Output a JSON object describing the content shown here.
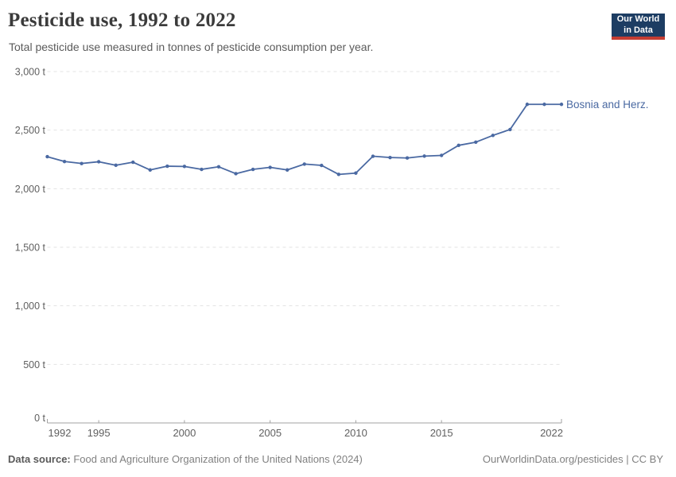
{
  "header": {
    "title": "Pesticide use, 1992 to 2022",
    "subtitle": "Total pesticide use measured in tonnes of pesticide consumption per year.",
    "logo": {
      "line1": "Our World",
      "line2": "in Data"
    }
  },
  "chart_data": {
    "type": "line",
    "title": "Pesticide use, 1992 to 2022",
    "xlabel": "",
    "ylabel": "",
    "unit": "t",
    "xlim": [
      1992,
      2022
    ],
    "ylim": [
      0,
      3000
    ],
    "grid": "horizontal-dashed",
    "legend_position": "end-of-line-label",
    "x": [
      1992,
      1993,
      1994,
      1995,
      1996,
      1997,
      1998,
      1999,
      2000,
      2001,
      2002,
      2003,
      2004,
      2005,
      2006,
      2007,
      2008,
      2009,
      2010,
      2011,
      2012,
      2013,
      2014,
      2015,
      2016,
      2017,
      2018,
      2019,
      2020,
      2021,
      2022
    ],
    "series": [
      {
        "name": "Bosnia and Herz.",
        "values": [
          2273,
          2232,
          2215,
          2230,
          2200,
          2226,
          2160,
          2192,
          2190,
          2165,
          2187,
          2128,
          2165,
          2182,
          2160,
          2210,
          2199,
          2122,
          2133,
          2277,
          2266,
          2262,
          2278,
          2284,
          2370,
          2397,
          2455,
          2505,
          2720,
          2720,
          2720
        ]
      }
    ],
    "x_ticks": [
      {
        "value": 1992,
        "label": "1992"
      },
      {
        "value": 1995,
        "label": "1995"
      },
      {
        "value": 2000,
        "label": "2000"
      },
      {
        "value": 2005,
        "label": "2005"
      },
      {
        "value": 2010,
        "label": "2010"
      },
      {
        "value": 2015,
        "label": "2015"
      },
      {
        "value": 2022,
        "label": "2022"
      }
    ],
    "y_ticks": [
      {
        "value": 0,
        "label": "0 t"
      },
      {
        "value": 500,
        "label": "500 t"
      },
      {
        "value": 1000,
        "label": "1,000 t"
      },
      {
        "value": 1500,
        "label": "1,500 t"
      },
      {
        "value": 2000,
        "label": "2,000 t"
      },
      {
        "value": 2500,
        "label": "2,500 t"
      },
      {
        "value": 3000,
        "label": "3,000 t"
      }
    ]
  },
  "colors": {
    "line": "#4a69a2",
    "series_label": "#4a69a2",
    "grid": "#e3e3e3",
    "axis": "#a1a1a1",
    "tick_text": "#606060",
    "title_text": "#3b3b3b",
    "subtitle_text": "#5b5b5b",
    "logo_bg": "#1d3d63",
    "logo_stripe": "#c53d33"
  },
  "footer": {
    "source_label": "Data source:",
    "source_value": " Food and Agriculture Organization of the United Nations (2024)",
    "right_text": "OurWorldinData.org/pesticides | CC BY"
  }
}
